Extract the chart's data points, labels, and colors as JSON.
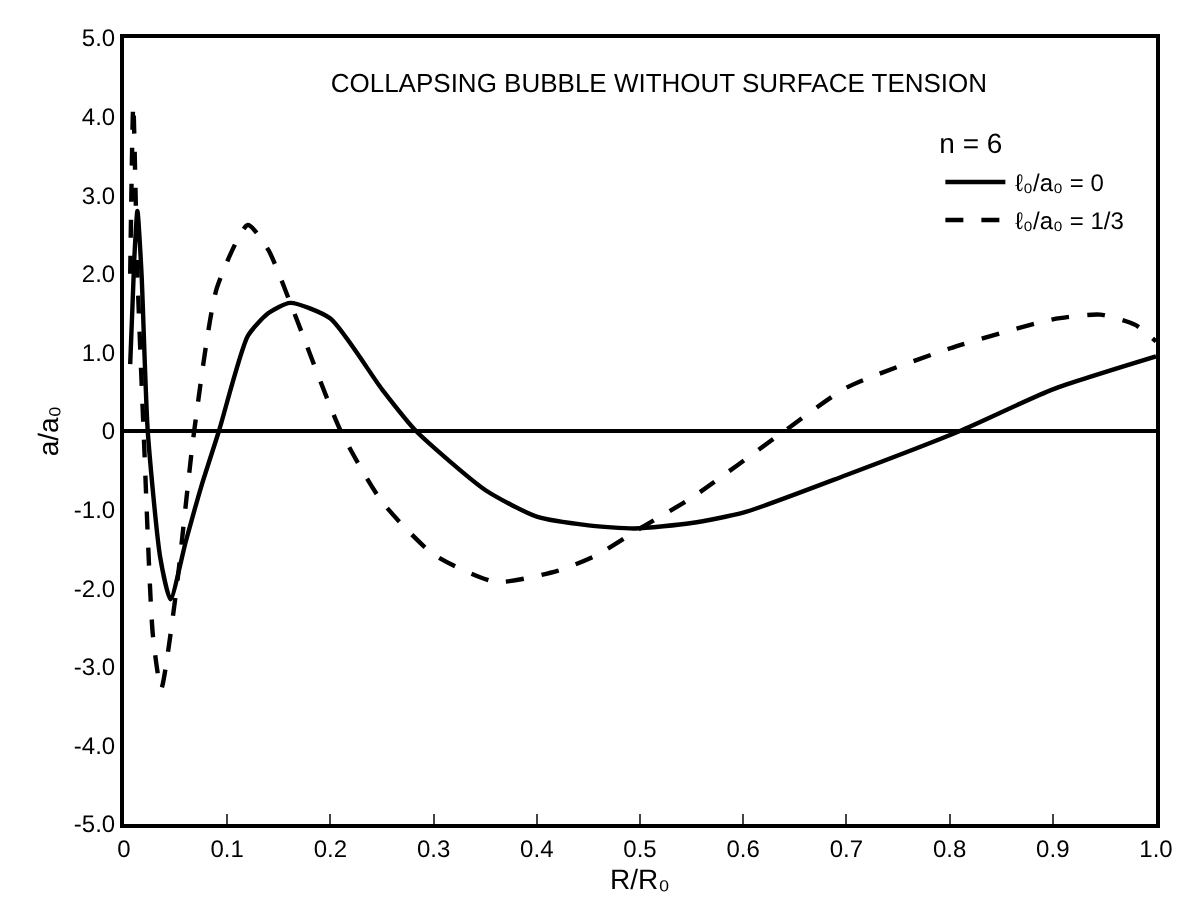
{
  "chart_data": {
    "type": "line",
    "title": "COLLAPSING BUBBLE WITHOUT SURFACE TENSION",
    "xlabel": "R/R₀",
    "ylabel": "a/a₀",
    "legend_title": "n = 6",
    "legend": "top right",
    "grid": false,
    "xlim": [
      0,
      1
    ],
    "xticks": [
      0,
      0.1,
      0.2,
      0.3,
      0.4,
      0.5,
      0.6,
      0.7,
      0.8,
      0.9,
      {
        "value": 1,
        "label": "1.0"
      }
    ],
    "ylim": [
      -5,
      5
    ],
    "yticks": [
      {
        "value": -5,
        "label": "-5.0"
      },
      {
        "value": -4,
        "label": "-4.0"
      },
      {
        "value": -3,
        "label": "-3.0"
      },
      {
        "value": -2,
        "label": "-2.0"
      },
      {
        "value": -1,
        "label": "-1.0"
      },
      0,
      {
        "value": 1,
        "label": "1.0"
      },
      {
        "value": 2,
        "label": "2.0"
      },
      {
        "value": 3,
        "label": "3.0"
      },
      {
        "value": 4,
        "label": "4.0"
      },
      {
        "value": 5,
        "label": "5.0"
      }
    ],
    "ref_lines": [
      {
        "axis": "y",
        "value": 0,
        "color": "#000000"
      }
    ],
    "series": [
      {
        "name": "ℓ₀/a₀ = 0",
        "color": "#000000",
        "line_style": "solid",
        "x": [
          0.006,
          0.01,
          0.013,
          0.017,
          0.023,
          0.035,
          0.045,
          0.06,
          0.075,
          0.092,
          0.12,
          0.14,
          0.161,
          0.2,
          0.25,
          0.283,
          0.35,
          0.4,
          0.45,
          0.495,
          0.55,
          0.6,
          0.7,
          0.81,
          0.9,
          1.0
        ],
        "values": [
          0.85,
          2.2,
          2.8,
          2.0,
          0,
          -1.6,
          -2.14,
          -1.4,
          -0.7,
          0,
          1.21,
          1.5,
          1.63,
          1.43,
          0.53,
          0,
          -0.75,
          -1.09,
          -1.2,
          -1.24,
          -1.17,
          -1.04,
          -0.56,
          0,
          0.53,
          0.95
        ]
      },
      {
        "name": "ℓ₀/a₀ = 1/3",
        "color": "#000000",
        "line_style": "dashed",
        "x": [
          0.006,
          0.009,
          0.013,
          0.019,
          0.028,
          0.036,
          0.05,
          0.068,
          0.09,
          0.12,
          0.14,
          0.165,
          0.21,
          0.25,
          0.3,
          0.36,
          0.42,
          0.458,
          0.5,
          0.55,
          0.64,
          0.7,
          0.8,
          0.9,
          0.946,
          0.98,
          1.0
        ],
        "values": [
          2.0,
          4.15,
          2.0,
          0,
          -2.6,
          -3.28,
          -2.1,
          0,
          1.82,
          2.62,
          2.3,
          1.5,
          0,
          -0.9,
          -1.57,
          -1.92,
          -1.78,
          -1.58,
          -1.24,
          -0.85,
          0,
          0.55,
          1.05,
          1.42,
          1.48,
          1.35,
          1.14
        ]
      }
    ]
  }
}
